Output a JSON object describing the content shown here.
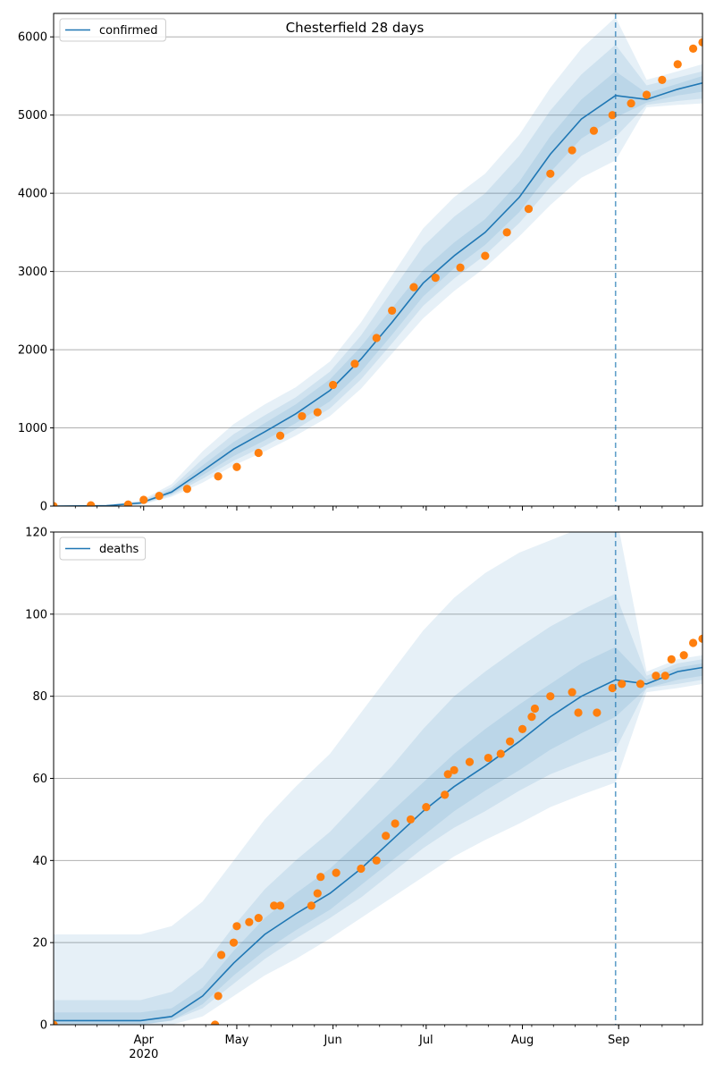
{
  "figure_title": "Chesterfield 28 days",
  "colors": {
    "model": "#1f77b4",
    "observed": "#ff7f0e",
    "band": "#1f77b4",
    "grid": "#b0b0b0",
    "forecast_line": "#1f77b4"
  },
  "chart_data": [
    {
      "type": "line",
      "title": "Chesterfield 28 days",
      "legend": "confirmed",
      "legend_position": "top-left",
      "grid": "y",
      "xlim": [
        "2020-03-03",
        "2020-09-28"
      ],
      "ylim": [
        0,
        6300
      ],
      "yticks": [
        0,
        1000,
        2000,
        3000,
        4000,
        5000,
        6000
      ],
      "forecast_start": "2020-08-31",
      "model_x": [
        "2020-03-03",
        "2020-03-20",
        "2020-03-31",
        "2020-04-10",
        "2020-04-20",
        "2020-04-30",
        "2020-05-10",
        "2020-05-20",
        "2020-05-31",
        "2020-06-10",
        "2020-06-20",
        "2020-06-30",
        "2020-07-10",
        "2020-07-20",
        "2020-07-31",
        "2020-08-10",
        "2020-08-20",
        "2020-08-31",
        "2020-09-10",
        "2020-09-20",
        "2020-09-28"
      ],
      "model_y": [
        0,
        5,
        40,
        180,
        450,
        730,
        950,
        1180,
        1480,
        1880,
        2350,
        2850,
        3200,
        3500,
        3950,
        4500,
        4950,
        5250,
        5200,
        5330,
        5410
      ],
      "bands": [
        {
          "lower": [
            0,
            0,
            15,
            120,
            300,
            520,
            700,
            900,
            1150,
            1500,
            1950,
            2400,
            2750,
            3050,
            3450,
            3850,
            4200,
            4420,
            5100,
            5130,
            5150
          ],
          "upper": [
            0,
            15,
            70,
            280,
            700,
            1050,
            1300,
            1520,
            1850,
            2350,
            2950,
            3550,
            3950,
            4250,
            4750,
            5350,
            5850,
            6250,
            5450,
            5560,
            5650
          ]
        },
        {
          "lower": [
            0,
            0,
            22,
            140,
            350,
            580,
            770,
            980,
            1250,
            1620,
            2080,
            2560,
            2910,
            3210,
            3620,
            4080,
            4480,
            4720,
            5130,
            5180,
            5210
          ],
          "upper": [
            0,
            10,
            58,
            240,
            600,
            920,
            1160,
            1390,
            1720,
            2180,
            2750,
            3320,
            3700,
            4000,
            4480,
            5060,
            5520,
            5900,
            5380,
            5480,
            5560
          ]
        },
        {
          "lower": [
            0,
            2,
            28,
            155,
            395,
            640,
            840,
            1060,
            1340,
            1720,
            2190,
            2680,
            3040,
            3340,
            3760,
            4270,
            4700,
            4970,
            5160,
            5250,
            5300
          ],
          "upper": [
            0,
            8,
            50,
            210,
            520,
            820,
            1060,
            1300,
            1620,
            2040,
            2530,
            3020,
            3370,
            3670,
            4150,
            4730,
            5200,
            5560,
            5280,
            5400,
            5500
          ]
        }
      ],
      "observed_x": [
        "2020-03-03",
        "2020-03-15",
        "2020-03-27",
        "2020-04-01",
        "2020-04-06",
        "2020-04-15",
        "2020-04-25",
        "2020-05-01",
        "2020-05-08",
        "2020-05-15",
        "2020-05-22",
        "2020-05-27",
        "2020-06-01",
        "2020-06-08",
        "2020-06-15",
        "2020-06-20",
        "2020-06-27",
        "2020-07-04",
        "2020-07-12",
        "2020-07-20",
        "2020-07-27",
        "2020-08-03",
        "2020-08-10",
        "2020-08-17",
        "2020-08-24",
        "2020-08-30",
        "2020-09-05",
        "2020-09-10",
        "2020-09-15",
        "2020-09-20",
        "2020-09-25",
        "2020-09-28"
      ],
      "observed_y": [
        0,
        10,
        20,
        80,
        130,
        220,
        380,
        500,
        680,
        900,
        1150,
        1200,
        1550,
        1820,
        2150,
        2500,
        2800,
        2920,
        3050,
        3200,
        3500,
        3800,
        4250,
        4550,
        4800,
        5000,
        5150,
        5260,
        5450,
        5650,
        5850,
        5930
      ]
    },
    {
      "type": "line",
      "legend": "deaths",
      "legend_position": "top-left",
      "grid": "y",
      "xlim": [
        "2020-03-03",
        "2020-09-28"
      ],
      "ylim": [
        0,
        120
      ],
      "yticks": [
        0,
        20,
        40,
        60,
        80,
        100,
        120
      ],
      "forecast_start": "2020-08-31",
      "model_x": [
        "2020-03-03",
        "2020-03-31",
        "2020-04-10",
        "2020-04-20",
        "2020-04-30",
        "2020-05-10",
        "2020-05-20",
        "2020-05-31",
        "2020-06-10",
        "2020-06-20",
        "2020-06-30",
        "2020-07-10",
        "2020-07-20",
        "2020-07-31",
        "2020-08-10",
        "2020-08-20",
        "2020-08-31",
        "2020-09-10",
        "2020-09-20",
        "2020-09-28"
      ],
      "model_y": [
        1,
        1,
        2,
        7,
        15,
        22,
        27,
        32,
        38,
        45,
        52,
        58,
        63,
        69,
        75,
        80,
        84,
        83,
        86,
        87
      ],
      "bands": [
        {
          "lower": [
            0,
            0,
            0,
            2,
            7,
            12,
            16,
            21,
            26,
            31,
            36,
            41,
            45,
            49,
            53,
            56,
            59,
            81,
            82,
            83
          ],
          "upper": [
            22,
            22,
            24,
            30,
            40,
            50,
            58,
            66,
            76,
            86,
            96,
            104,
            110,
            115,
            118,
            121,
            125,
            86,
            89,
            90
          ]
        },
        {
          "lower": [
            0,
            0,
            1,
            4,
            10,
            16,
            21,
            26,
            31,
            37,
            43,
            48,
            52,
            57,
            61,
            64,
            67,
            82,
            83,
            84
          ],
          "upper": [
            6,
            6,
            8,
            14,
            24,
            33,
            40,
            47,
            55,
            63,
            72,
            80,
            86,
            92,
            97,
            101,
            105,
            85,
            88,
            89
          ]
        },
        {
          "lower": [
            0,
            0,
            1,
            5,
            12,
            18,
            23,
            28,
            34,
            40,
            46,
            52,
            57,
            62,
            67,
            71,
            75,
            82,
            84,
            85
          ],
          "upper": [
            3,
            3,
            4,
            9,
            18,
            26,
            32,
            38,
            45,
            52,
            59,
            66,
            72,
            78,
            83,
            88,
            92,
            84,
            87,
            88
          ]
        }
      ],
      "observed_x": [
        "2020-03-03",
        "2020-04-24",
        "2020-04-25",
        "2020-04-26",
        "2020-04-30",
        "2020-05-01",
        "2020-05-05",
        "2020-05-08",
        "2020-05-13",
        "2020-05-15",
        "2020-05-25",
        "2020-05-27",
        "2020-05-28",
        "2020-06-02",
        "2020-06-10",
        "2020-06-15",
        "2020-06-18",
        "2020-06-21",
        "2020-06-26",
        "2020-07-01",
        "2020-07-07",
        "2020-07-08",
        "2020-07-10",
        "2020-07-15",
        "2020-07-21",
        "2020-07-25",
        "2020-07-28",
        "2020-08-01",
        "2020-08-04",
        "2020-08-05",
        "2020-08-10",
        "2020-08-17",
        "2020-08-19",
        "2020-08-25",
        "2020-08-30",
        "2020-09-02",
        "2020-09-08",
        "2020-09-13",
        "2020-09-16",
        "2020-09-18",
        "2020-09-22",
        "2020-09-25",
        "2020-09-28"
      ],
      "observed_y": [
        0,
        0,
        7,
        17,
        20,
        24,
        25,
        26,
        29,
        29,
        29,
        32,
        36,
        37,
        38,
        40,
        46,
        49,
        50,
        53,
        56,
        61,
        62,
        64,
        65,
        66,
        69,
        72,
        75,
        77,
        80,
        81,
        76,
        76,
        82,
        83,
        83,
        85,
        85,
        89,
        90,
        93,
        94
      ]
    }
  ],
  "x_axis": {
    "ticks": [
      {
        "label": "Apr",
        "date": "2020-04-01"
      },
      {
        "label": "May",
        "date": "2020-05-01"
      },
      {
        "label": "Jun",
        "date": "2020-06-01"
      },
      {
        "label": "Jul",
        "date": "2020-07-01"
      },
      {
        "label": "Aug",
        "date": "2020-08-01"
      },
      {
        "label": "Sep",
        "date": "2020-09-01"
      }
    ],
    "year_label": "2020"
  }
}
